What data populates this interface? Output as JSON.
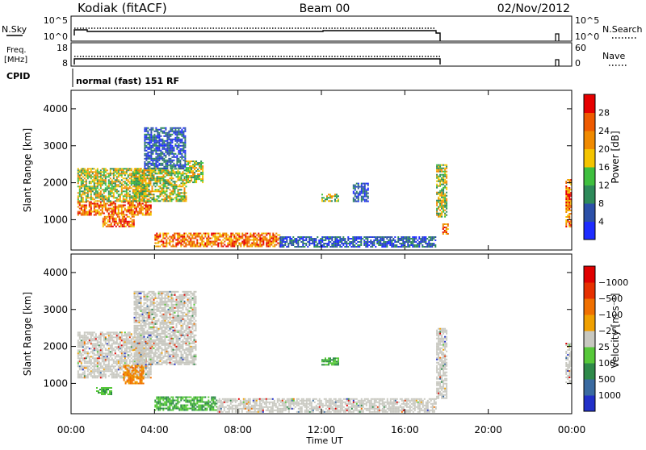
{
  "header": {
    "station": "Kodiak (fitACF)",
    "beam": "Beam 00",
    "date": "02/Nov/2012"
  },
  "noise_panel": {
    "left_label": "N.Sky",
    "left_ticks": [
      "10^5",
      "10^0"
    ],
    "right_ticks": [
      "10^5",
      "10^0"
    ],
    "right_label": "N.Search",
    "right_label_style": "dotted"
  },
  "freq_panel": {
    "left_label_lines": [
      "Freq.",
      "[MHz]"
    ],
    "left_ticks": [
      "18",
      "8"
    ],
    "right_ticks": [
      "60",
      "0"
    ],
    "right_label": "Nave",
    "right_label_style": "dotted"
  },
  "cpid_panel": {
    "label": "CPID",
    "text": "normal (fast) 151 RF"
  },
  "chart_data": [
    {
      "type": "heatmap",
      "title": "",
      "ylabel": "Slant Range [km]",
      "xlabel": "",
      "x_range_hours": [
        0,
        24
      ],
      "ylim": [
        180,
        4500
      ],
      "yticks": [
        1000,
        2000,
        3000,
        4000
      ],
      "colorbar": {
        "label": "Power [dB]",
        "ticks": [
          "4",
          "8",
          "12",
          "16",
          "20",
          "24",
          "28"
        ],
        "colors": [
          "#1e2cff",
          "#2c50a8",
          "#2e8a5a",
          "#3fbf3f",
          "#f4c400",
          "#f08a00",
          "#ee5a00",
          "#e60000"
        ]
      },
      "echo_regions": [
        {
          "t": [
            0.3,
            3.8
          ],
          "r": [
            1150,
            1500
          ],
          "level": "high"
        },
        {
          "t": [
            0.3,
            3.5
          ],
          "r": [
            1500,
            2400
          ],
          "level": "mid"
        },
        {
          "t": [
            1.5,
            3.0
          ],
          "r": [
            800,
            1100
          ],
          "level": "high"
        },
        {
          "t": [
            3.0,
            5.5
          ],
          "r": [
            1500,
            2400
          ],
          "level": "mid"
        },
        {
          "t": [
            3.5,
            5.5
          ],
          "r": [
            2400,
            3500
          ],
          "level": "low"
        },
        {
          "t": [
            5.5,
            6.3
          ],
          "r": [
            2000,
            2600
          ],
          "level": "mid"
        },
        {
          "t": [
            4.0,
            10.0
          ],
          "r": [
            300,
            650
          ],
          "level": "high"
        },
        {
          "t": [
            10.0,
            17.5
          ],
          "r": [
            250,
            550
          ],
          "level": "low"
        },
        {
          "t": [
            12.0,
            12.8
          ],
          "r": [
            1500,
            1700
          ],
          "level": "mid"
        },
        {
          "t": [
            13.5,
            14.2
          ],
          "r": [
            1500,
            2000
          ],
          "level": "low"
        },
        {
          "t": [
            17.5,
            18.0
          ],
          "r": [
            1100,
            2500
          ],
          "level": "mid"
        },
        {
          "t": [
            17.8,
            18.1
          ],
          "r": [
            600,
            900
          ],
          "level": "high"
        },
        {
          "t": [
            23.7,
            23.95
          ],
          "r": [
            800,
            2100
          ],
          "level": "high"
        }
      ]
    },
    {
      "type": "heatmap",
      "title": "",
      "ylabel": "Slant Range [km]",
      "xlabel": "Time UT",
      "x_range_hours": [
        0,
        24
      ],
      "xticks": [
        "00:00",
        "04:00",
        "08:00",
        "12:00",
        "16:00",
        "20:00",
        "00:00"
      ],
      "ylim": [
        180,
        4500
      ],
      "yticks": [
        1000,
        2000,
        3000,
        4000
      ],
      "colorbar": {
        "label": "Velocity [m s⁻¹]",
        "ticks": [
          "1000",
          "500",
          "100",
          "25",
          "−25",
          "−100",
          "−500",
          "−1000"
        ],
        "colors": [
          "#2230c8",
          "#3a6aa0",
          "#2f8a4a",
          "#57c83a",
          "#c8c8c0",
          "#f0a000",
          "#f07000",
          "#e63000",
          "#e00000"
        ]
      },
      "echo_regions": [
        {
          "t": [
            0.3,
            3.8
          ],
          "r": [
            1150,
            2400
          ],
          "level": "zero"
        },
        {
          "t": [
            3.0,
            6.0
          ],
          "r": [
            1500,
            3500
          ],
          "level": "zero"
        },
        {
          "t": [
            2.5,
            3.5
          ],
          "r": [
            1000,
            1500
          ],
          "level": "neg"
        },
        {
          "t": [
            1.2,
            1.9
          ],
          "r": [
            700,
            900
          ],
          "level": "pos"
        },
        {
          "t": [
            4.0,
            7.0
          ],
          "r": [
            300,
            650
          ],
          "level": "pos"
        },
        {
          "t": [
            7.0,
            17.5
          ],
          "r": [
            250,
            600
          ],
          "level": "zero"
        },
        {
          "t": [
            12.0,
            12.8
          ],
          "r": [
            1500,
            1700
          ],
          "level": "pos"
        },
        {
          "t": [
            17.5,
            18.0
          ],
          "r": [
            600,
            2500
          ],
          "level": "zero"
        },
        {
          "t": [
            23.7,
            23.95
          ],
          "r": [
            1000,
            2100
          ],
          "level": "zero"
        }
      ]
    }
  ]
}
